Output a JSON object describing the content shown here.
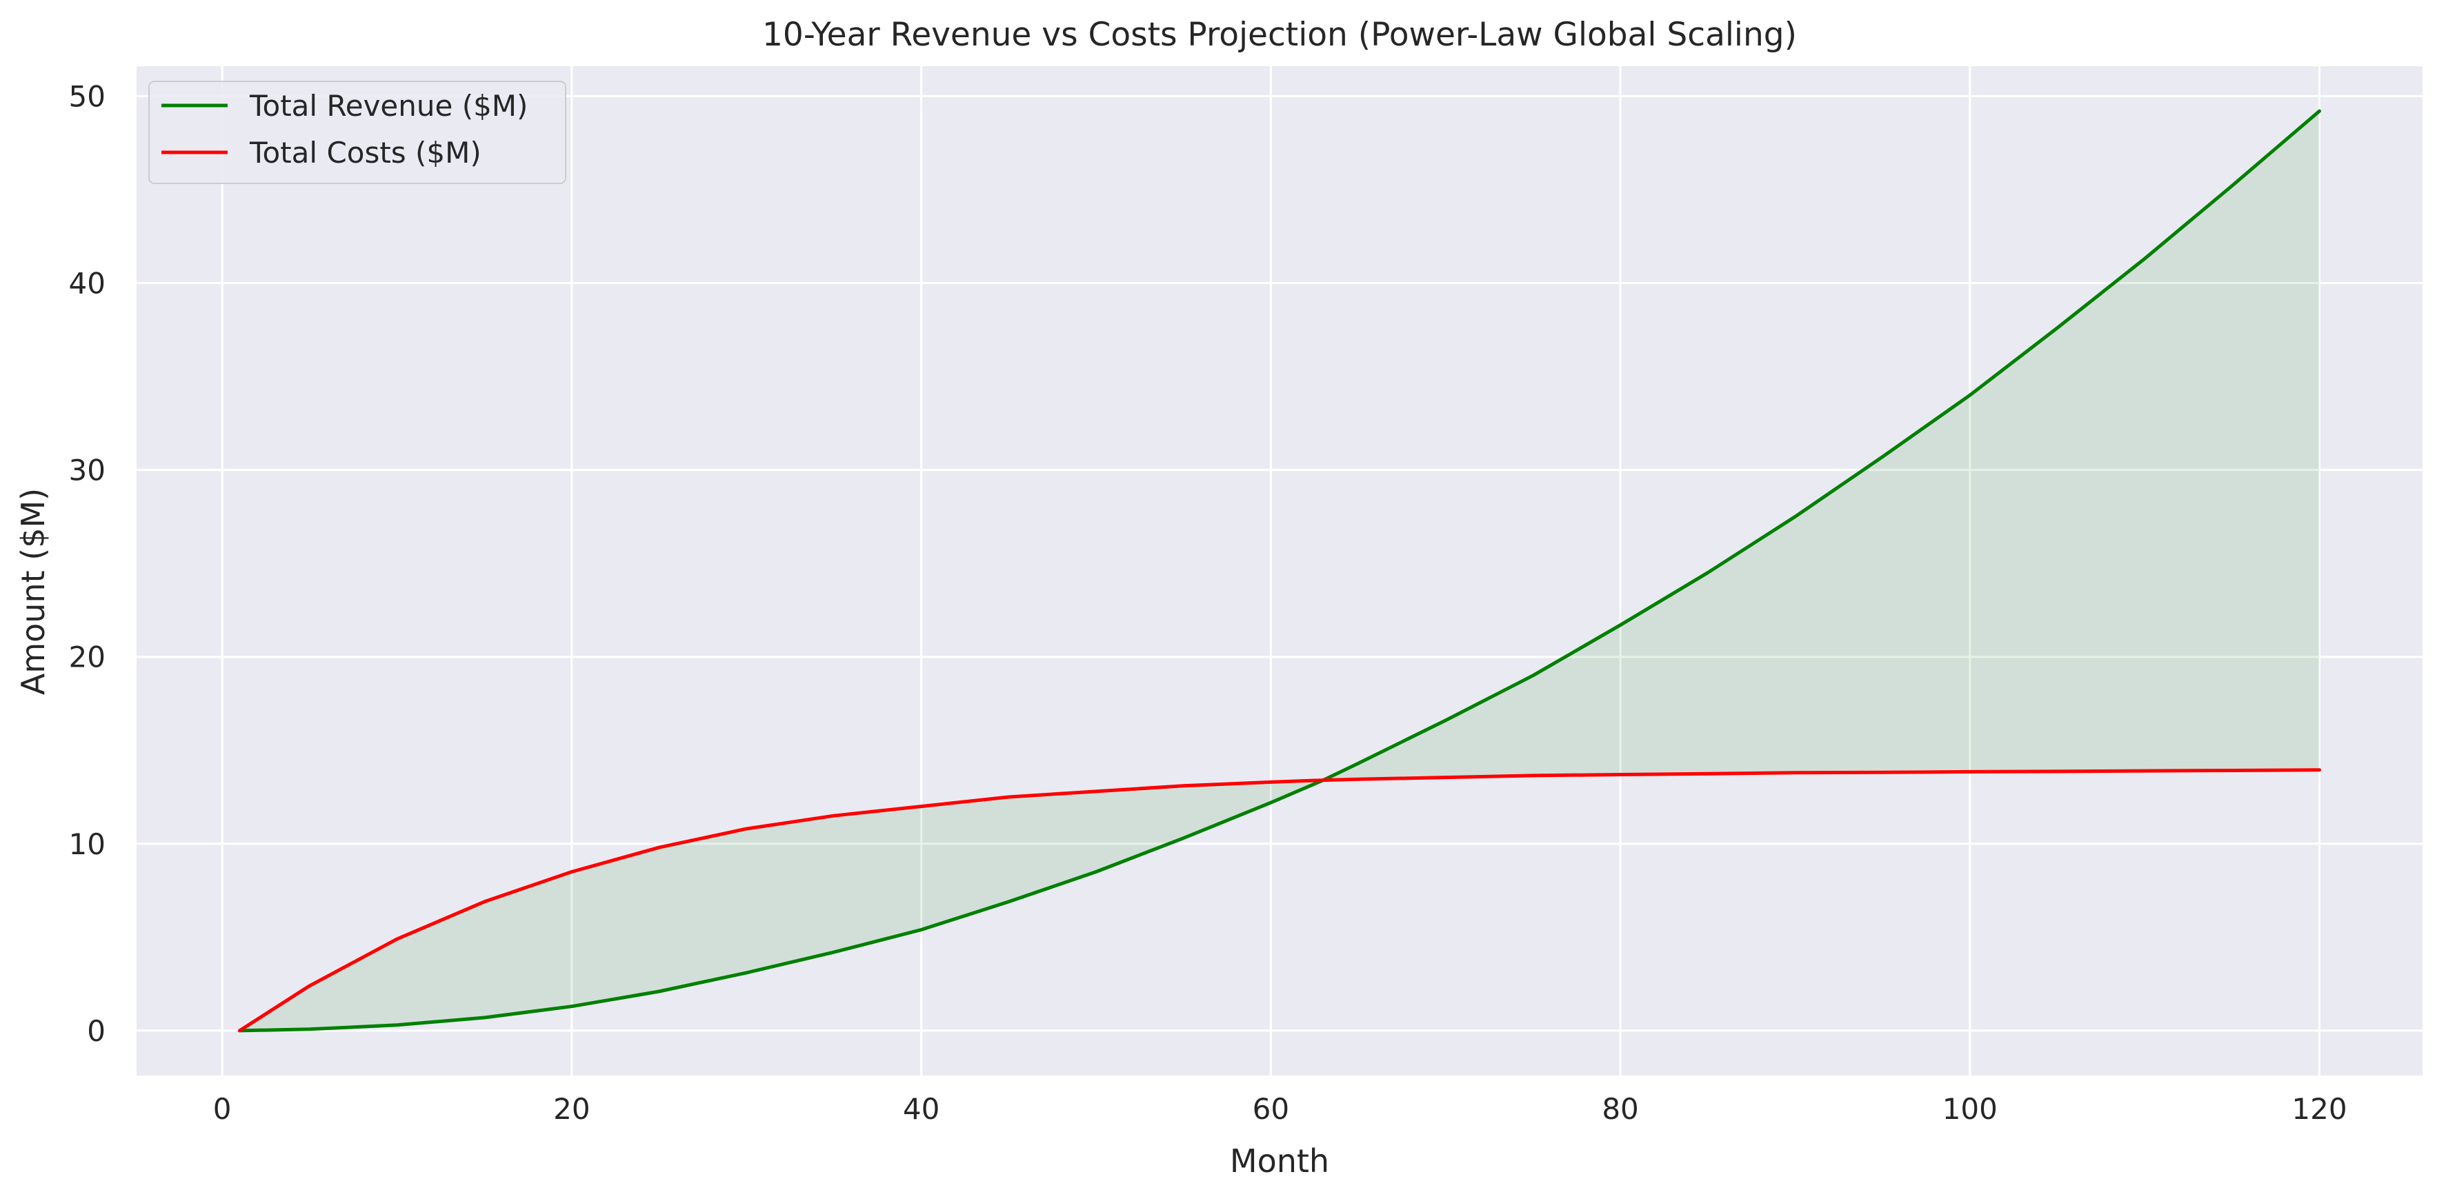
{
  "chart_data": {
    "type": "line",
    "title": "10-Year Revenue vs Costs Projection (Power-Law Global Scaling)",
    "xlabel": "Month",
    "ylabel": "Amount ($M)",
    "xlim": [
      -4.9,
      125.9
    ],
    "ylim": [
      -2.4,
      51.6
    ],
    "x_ticks": [
      0,
      20,
      40,
      60,
      80,
      100,
      120
    ],
    "y_ticks": [
      0,
      10,
      20,
      30,
      40,
      50
    ],
    "grid": true,
    "legend_position": "top-left",
    "background_color": "#eaeaf2",
    "grid_color": "#ffffff",
    "x": [
      1,
      5,
      10,
      15,
      20,
      25,
      30,
      35,
      40,
      45,
      50,
      55,
      60,
      63,
      65,
      70,
      75,
      80,
      85,
      90,
      95,
      100,
      105,
      110,
      115,
      120
    ],
    "series": [
      {
        "name": "Total Revenue ($M)",
        "color": "#008000",
        "values": [
          0.0,
          0.08,
          0.3,
          0.7,
          1.3,
          2.1,
          3.1,
          4.2,
          5.4,
          6.9,
          8.5,
          10.3,
          12.2,
          13.4,
          14.3,
          16.6,
          19.0,
          21.7,
          24.5,
          27.5,
          30.7,
          34.0,
          37.6,
          41.3,
          45.2,
          49.2
        ]
      },
      {
        "name": "Total Costs ($M)",
        "color": "#ff0000",
        "values": [
          0.0,
          2.4,
          4.9,
          6.9,
          8.5,
          9.8,
          10.8,
          11.5,
          12.0,
          12.5,
          12.8,
          13.1,
          13.3,
          13.4,
          13.45,
          13.55,
          13.65,
          13.7,
          13.75,
          13.8,
          13.82,
          13.85,
          13.87,
          13.9,
          13.92,
          13.95
        ]
      }
    ],
    "fills": [
      {
        "where": "costs above revenue",
        "color": "#ff0000",
        "opacity": 0.1
      },
      {
        "where": "revenue above costs",
        "color": "#008000",
        "opacity": 0.1
      }
    ]
  }
}
